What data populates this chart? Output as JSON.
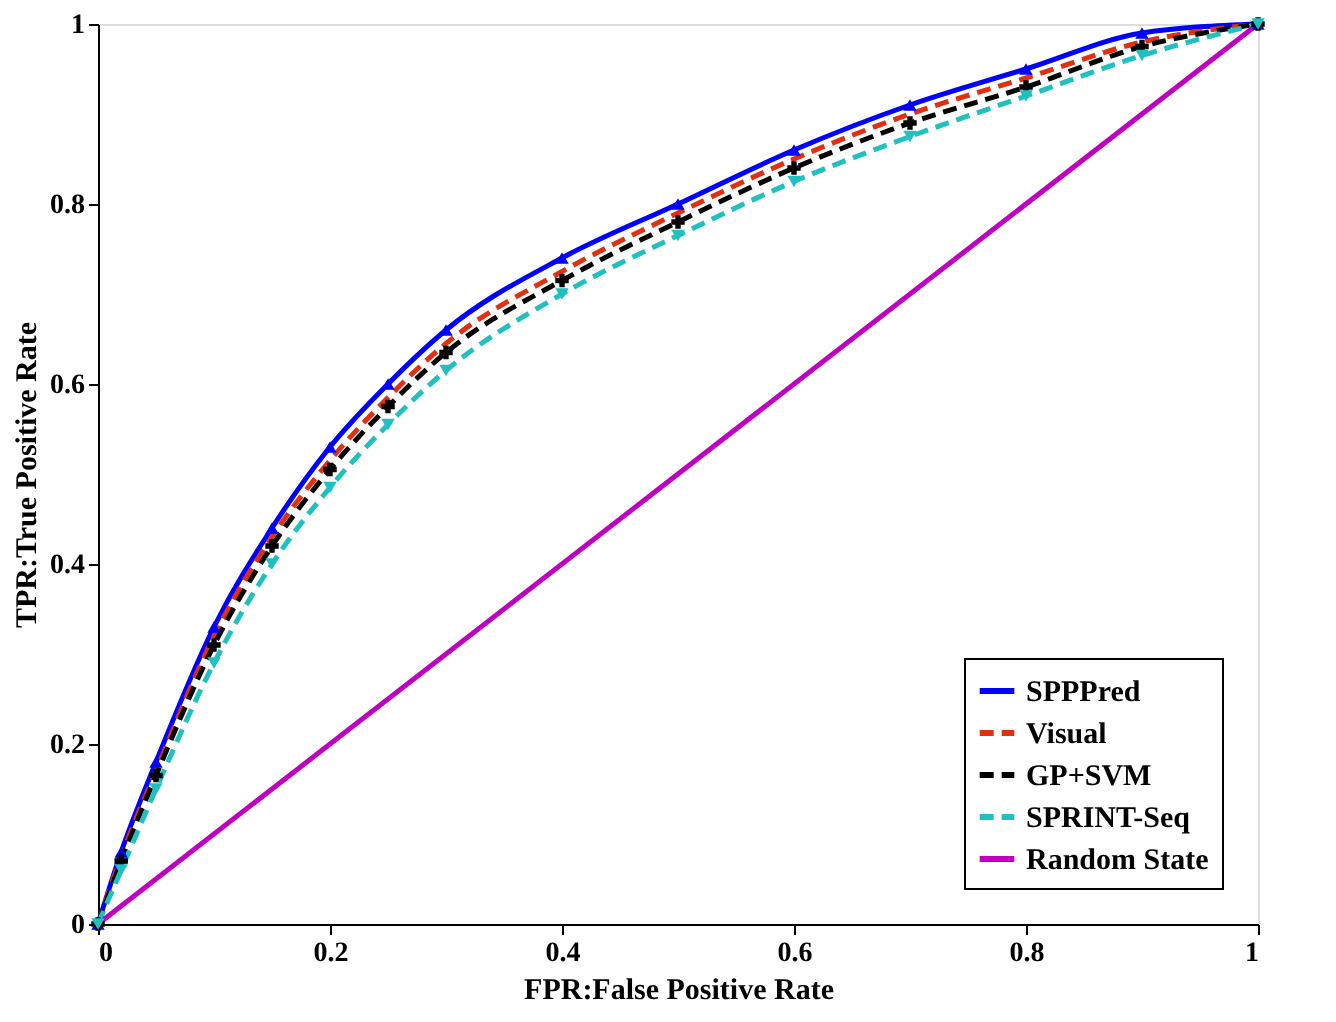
{
  "chart_data": {
    "type": "line",
    "xlabel": "FPR:False Positive Rate",
    "ylabel": "TPR:True Positive Rate",
    "xlim": [
      0,
      1
    ],
    "ylim": [
      0,
      1
    ],
    "xticks": [
      0,
      0.2,
      0.4,
      0.6,
      0.8,
      1
    ],
    "yticks": [
      0,
      0.2,
      0.4,
      0.6,
      0.8,
      1
    ],
    "grid": false,
    "legend": "bottom right",
    "x": [
      0,
      0.02,
      0.05,
      0.1,
      0.15,
      0.2,
      0.25,
      0.3,
      0.4,
      0.5,
      0.6,
      0.7,
      0.8,
      0.9,
      1
    ],
    "series": [
      {
        "name": "SPPPred",
        "color": "#0000ff",
        "marker": "triangle",
        "line_style": "solid",
        "values": [
          0,
          0.08,
          0.18,
          0.33,
          0.44,
          0.53,
          0.6,
          0.66,
          0.74,
          0.8,
          0.86,
          0.91,
          0.95,
          0.99,
          1
        ]
      },
      {
        "name": "Visual",
        "color": "#e03010",
        "marker": "none",
        "line_style": "dashed",
        "values": [
          0,
          0.075,
          0.17,
          0.32,
          0.43,
          0.515,
          0.585,
          0.645,
          0.725,
          0.79,
          0.85,
          0.9,
          0.94,
          0.98,
          1
        ]
      },
      {
        "name": "GP+SVM",
        "color": "#000000",
        "marker": "cross",
        "line_style": "dashed",
        "values": [
          0,
          0.07,
          0.165,
          0.31,
          0.42,
          0.505,
          0.575,
          0.635,
          0.715,
          0.78,
          0.84,
          0.89,
          0.93,
          0.975,
          1
        ]
      },
      {
        "name": "SPRINT-Seq",
        "color": "#20c0c0",
        "marker": "triangle-down",
        "line_style": "dashed",
        "values": [
          0,
          0.06,
          0.15,
          0.29,
          0.4,
          0.485,
          0.555,
          0.615,
          0.7,
          0.765,
          0.825,
          0.875,
          0.92,
          0.965,
          1
        ]
      },
      {
        "name": "Random State",
        "color": "#c000c0",
        "marker": "none",
        "line_style": "solid",
        "x": [
          0,
          1
        ],
        "values": [
          0,
          1
        ]
      }
    ]
  }
}
